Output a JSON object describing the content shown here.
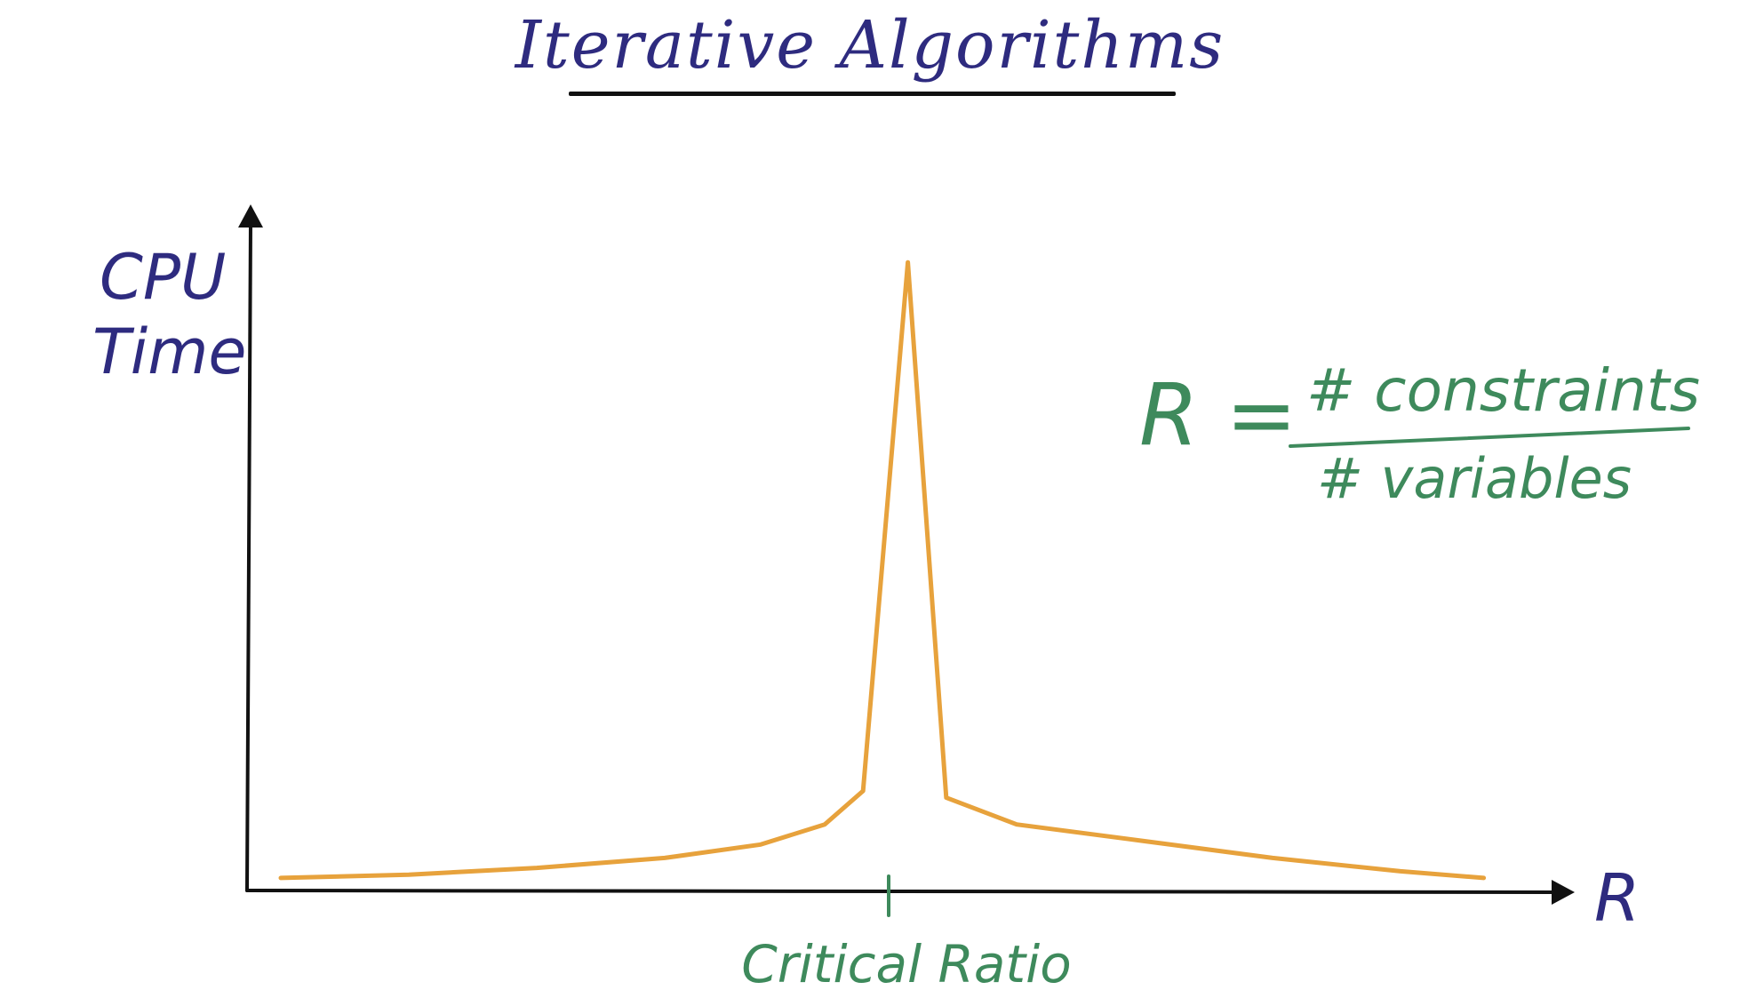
{
  "title": "Iterative Algorithms",
  "colors": {
    "title_ink": "#2e2b7f",
    "annotation_ink": "#3e8a5c",
    "curve": "#e7a23c",
    "axis": "#111111"
  },
  "formula": {
    "lhs": "R =",
    "numerator": "# constraints",
    "denominator": "# variables"
  },
  "chart_data": {
    "type": "line",
    "title": "Iterative Algorithms",
    "ylabel_lines": [
      "CPU",
      "Time"
    ],
    "xlabel": "R",
    "ticks": [
      {
        "x": 1.0,
        "label": "Critical Ratio"
      }
    ],
    "xlim": [
      0,
      2
    ],
    "ylim": [
      0,
      10
    ],
    "series": [
      {
        "values": [
          [
            0.05,
            0.2
          ],
          [
            0.25,
            0.25
          ],
          [
            0.45,
            0.35
          ],
          [
            0.65,
            0.5
          ],
          [
            0.8,
            0.7
          ],
          [
            0.9,
            1.0
          ],
          [
            0.96,
            1.5
          ],
          [
            1.03,
            9.4
          ],
          [
            1.09,
            1.4
          ],
          [
            1.2,
            1.0
          ],
          [
            1.4,
            0.75
          ],
          [
            1.6,
            0.5
          ],
          [
            1.8,
            0.3
          ],
          [
            1.93,
            0.2
          ]
        ]
      }
    ]
  }
}
